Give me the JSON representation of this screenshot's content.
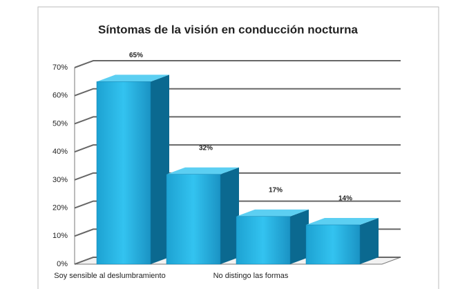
{
  "chart_data": {
    "type": "bar3d",
    "title": "Síntomas de la visión en conducción nocturna",
    "categories": [
      "Soy sensible al deslumbramiento",
      null,
      "No distingo las formas",
      null
    ],
    "values": [
      65,
      32,
      17,
      14
    ],
    "value_labels": [
      "65%",
      "32%",
      "17%",
      "14%"
    ],
    "color": "#1eaee0",
    "ylim": [
      0,
      70
    ],
    "yticks": [
      {
        "value": 0,
        "label": "0%"
      },
      {
        "value": 10,
        "label": "10%"
      },
      {
        "value": 20,
        "label": "20%"
      },
      {
        "value": 30,
        "label": "30%"
      },
      {
        "value": 40,
        "label": "40%"
      },
      {
        "value": 50,
        "label": "50%"
      },
      {
        "value": 60,
        "label": "60%"
      },
      {
        "value": 70,
        "label": "70%"
      }
    ],
    "grid": true
  }
}
